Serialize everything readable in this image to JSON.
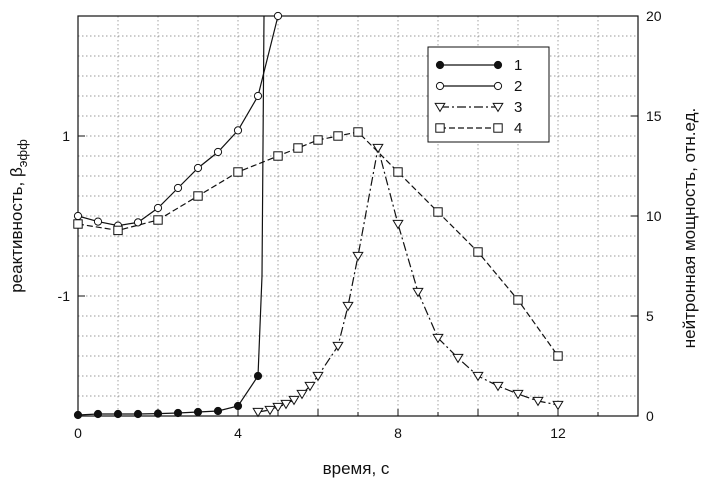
{
  "chart_data": {
    "type": "line",
    "xlabel": "время, с",
    "ylabel_left": "реактивность, β",
    "ylabel_left_sub": "эфф",
    "ylabel_right": "нейтронная мощность, отн.ед.",
    "xlim": [
      0,
      14
    ],
    "x_ticks": [
      0,
      4,
      8,
      12
    ],
    "x_tick_labels": [
      "0",
      "4",
      "8",
      "12"
    ],
    "y_left_lim": [
      -2.5,
      2.5
    ],
    "y_left_ticks": [
      1,
      -1
    ],
    "y_left_tick_labels": [
      "1",
      "-1"
    ],
    "y_right_lim": [
      0,
      20
    ],
    "y_right_ticks": [
      0,
      5,
      10,
      15,
      20
    ],
    "y_right_tick_labels": [
      "0",
      "5",
      "10",
      "15",
      "20"
    ],
    "grid": true,
    "legend_position": "top-right",
    "series": [
      {
        "name": "1",
        "axis": "right",
        "marker": "filled-circle",
        "dash": "solid",
        "x": [
          0,
          0.5,
          1,
          1.5,
          2,
          2.5,
          3,
          3.5,
          4,
          4.5,
          4.6,
          4.65
        ],
        "y": [
          0.05,
          0.1,
          0.1,
          0.1,
          0.12,
          0.15,
          0.2,
          0.25,
          0.5,
          2.0,
          7.0,
          20.0
        ],
        "marker_x": [
          0,
          0.5,
          1,
          1.5,
          2,
          2.5,
          3,
          3.5,
          4,
          4.5
        ]
      },
      {
        "name": "2",
        "axis": "left",
        "marker": "open-circle",
        "dash": "solid",
        "x": [
          0,
          0.5,
          1,
          1.5,
          2,
          2.5,
          3,
          3.5,
          4,
          4.5,
          5
        ],
        "y": [
          0.0,
          -0.07,
          -0.12,
          -0.08,
          0.1,
          0.35,
          0.6,
          0.8,
          1.07,
          1.5,
          2.5
        ]
      },
      {
        "name": "3",
        "axis": "right",
        "marker": "open-triangle-down",
        "dash": "dashdot",
        "x": [
          4.5,
          4.8,
          5.0,
          5.2,
          5.4,
          5.6,
          5.8,
          6.0,
          6.5,
          6.75,
          7.0,
          7.5,
          8.0,
          8.5,
          9.0,
          9.5,
          10.0,
          10.5,
          11.0,
          11.5,
          12.0
        ],
        "y": [
          0.2,
          0.3,
          0.45,
          0.6,
          0.8,
          1.1,
          1.5,
          2.0,
          3.5,
          5.5,
          8.0,
          13.4,
          9.6,
          6.2,
          3.9,
          2.9,
          2.0,
          1.5,
          1.1,
          0.75,
          0.55
        ]
      },
      {
        "name": "4",
        "axis": "left",
        "marker": "open-square",
        "dash": "dashed",
        "x": [
          0,
          1,
          2,
          3,
          4,
          5,
          5.5,
          6,
          6.5,
          7,
          8,
          9,
          10,
          11,
          12
        ],
        "y": [
          -0.1,
          -0.18,
          -0.05,
          0.25,
          0.55,
          0.75,
          0.85,
          0.95,
          1.0,
          1.05,
          0.55,
          0.05,
          -0.45,
          -1.05,
          -1.75
        ]
      }
    ]
  }
}
